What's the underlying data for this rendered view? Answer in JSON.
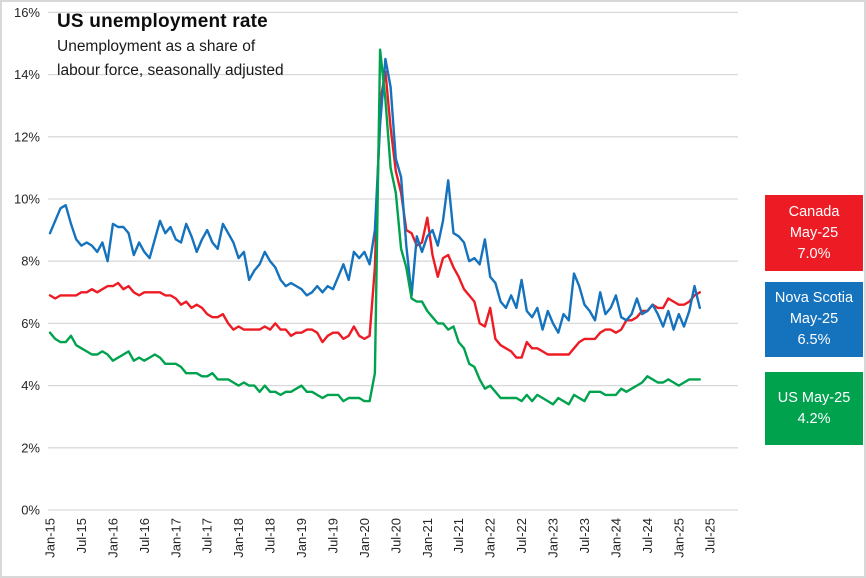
{
  "header": {
    "title": "US unemployment rate",
    "subtitle_line1": "Unemployment as a share of",
    "subtitle_line2": "labour force, seasonally adjusted"
  },
  "legend": {
    "canada": {
      "region": "Canada",
      "period": "May-25",
      "value": "7.0%",
      "color": "#ed1b24",
      "lines": [
        "Canada",
        "May-25",
        "7.0%"
      ]
    },
    "nova_scotia": {
      "region": "Nova Scotia",
      "period": "May-25",
      "value": "6.5%",
      "color": "#1572bd",
      "lines": [
        "Nova Scotia",
        "May-25",
        "6.5%"
      ]
    },
    "us": {
      "region": "US",
      "period": "May-25",
      "value": "4.2%",
      "color": "#00a24e",
      "lines": [
        "US May-25",
        "4.2%"
      ]
    }
  },
  "chart_data": {
    "type": "line",
    "title": "US unemployment rate",
    "subtitle": "Unemployment as a share of labour force, seasonally adjusted",
    "x_range": {
      "start": "Jan-2015",
      "end": "May-2025",
      "frequency": "monthly",
      "points": 125
    },
    "x_tick_labels": [
      "Jan-15",
      "Jul-15",
      "Jan-16",
      "Jul-16",
      "Jan-17",
      "Jul-17",
      "Jan-18",
      "Jul-18",
      "Jan-19",
      "Jul-19",
      "Jan-20",
      "Jul-20",
      "Jan-21",
      "Jul-21",
      "Jan-22",
      "Jul-22",
      "Jan-23",
      "Jul-23",
      "Jan-24",
      "Jul-24",
      "Jan-25",
      "Jul-25"
    ],
    "x_tick_interval_months": 6,
    "ylim": [
      0,
      16
    ],
    "y_tick_step": 2,
    "y_tick_suffix": "%",
    "grid": "horizontal",
    "grid_color": "#d9d9d9",
    "axis_text_color": "#262626",
    "legend_position": "right",
    "series": [
      {
        "name": "Canada",
        "color": "#ed1b24",
        "latest_period": "May-25",
        "latest_value": 7.0,
        "values": [
          6.9,
          6.8,
          6.9,
          6.9,
          6.9,
          6.9,
          7.0,
          7.0,
          7.1,
          7.0,
          7.1,
          7.2,
          7.2,
          7.3,
          7.1,
          7.2,
          7.0,
          6.9,
          7.0,
          7.0,
          7.0,
          7.0,
          6.9,
          6.9,
          6.8,
          6.6,
          6.7,
          6.5,
          6.6,
          6.5,
          6.3,
          6.2,
          6.2,
          6.3,
          6.0,
          5.8,
          5.9,
          5.8,
          5.8,
          5.8,
          5.8,
          5.9,
          5.8,
          6.0,
          5.8,
          5.8,
          5.6,
          5.7,
          5.7,
          5.8,
          5.8,
          5.7,
          5.4,
          5.6,
          5.7,
          5.7,
          5.5,
          5.6,
          5.9,
          5.6,
          5.5,
          5.6,
          7.8,
          13.1,
          14.1,
          12.3,
          10.9,
          10.2,
          9.0,
          8.9,
          8.5,
          8.6,
          9.4,
          8.2,
          7.5,
          8.1,
          8.2,
          7.8,
          7.5,
          7.1,
          6.9,
          6.7,
          6.0,
          5.9,
          6.5,
          5.5,
          5.3,
          5.2,
          5.1,
          4.9,
          4.9,
          5.4,
          5.2,
          5.2,
          5.1,
          5.0,
          5.0,
          5.0,
          5.0,
          5.0,
          5.2,
          5.4,
          5.5,
          5.5,
          5.5,
          5.7,
          5.8,
          5.8,
          5.7,
          5.8,
          6.1,
          6.1,
          6.2,
          6.4,
          6.4,
          6.6,
          6.5,
          6.5,
          6.8,
          6.7,
          6.6,
          6.6,
          6.7,
          6.9,
          7.0
        ]
      },
      {
        "name": "Nova Scotia",
        "color": "#1572bd",
        "latest_period": "May-25",
        "latest_value": 6.5,
        "values": [
          8.9,
          9.3,
          9.7,
          9.8,
          9.2,
          8.7,
          8.5,
          8.6,
          8.5,
          8.3,
          8.6,
          8.0,
          9.2,
          9.1,
          9.1,
          8.9,
          8.2,
          8.6,
          8.3,
          8.1,
          8.7,
          9.3,
          8.9,
          9.1,
          8.7,
          8.6,
          9.2,
          8.8,
          8.3,
          8.7,
          9.0,
          8.6,
          8.4,
          9.2,
          8.9,
          8.6,
          8.1,
          8.3,
          7.4,
          7.7,
          7.9,
          8.3,
          8.0,
          7.8,
          7.4,
          7.2,
          7.3,
          7.2,
          7.1,
          6.9,
          7.0,
          7.2,
          7.0,
          7.2,
          7.1,
          7.5,
          7.9,
          7.4,
          8.3,
          8.1,
          8.3,
          7.9,
          9.0,
          12.4,
          14.5,
          13.6,
          11.3,
          10.7,
          8.5,
          6.9,
          8.8,
          8.3,
          8.8,
          9.0,
          8.5,
          9.3,
          10.6,
          8.9,
          8.8,
          8.6,
          8.0,
          8.1,
          7.9,
          8.7,
          7.5,
          7.3,
          6.7,
          6.5,
          6.9,
          6.5,
          7.4,
          6.4,
          6.2,
          6.5,
          5.8,
          6.4,
          6.0,
          5.7,
          6.3,
          6.1,
          7.6,
          7.2,
          6.6,
          6.4,
          6.1,
          7.0,
          6.3,
          6.5,
          6.9,
          6.2,
          6.1,
          6.3,
          6.8,
          6.3,
          6.4,
          6.6,
          6.3,
          5.9,
          6.4,
          5.8,
          6.3,
          5.9,
          6.4,
          7.2,
          6.5
        ]
      },
      {
        "name": "US",
        "color": "#00a24e",
        "latest_period": "May-25",
        "latest_value": 4.2,
        "values": [
          5.7,
          5.5,
          5.4,
          5.4,
          5.6,
          5.3,
          5.2,
          5.1,
          5.0,
          5.0,
          5.1,
          5.0,
          4.8,
          4.9,
          5.0,
          5.1,
          4.8,
          4.9,
          4.8,
          4.9,
          5.0,
          4.9,
          4.7,
          4.7,
          4.7,
          4.6,
          4.4,
          4.4,
          4.4,
          4.3,
          4.3,
          4.4,
          4.2,
          4.2,
          4.2,
          4.1,
          4.0,
          4.1,
          4.0,
          4.0,
          3.8,
          4.0,
          3.8,
          3.8,
          3.7,
          3.8,
          3.8,
          3.9,
          4.0,
          3.8,
          3.8,
          3.7,
          3.6,
          3.7,
          3.7,
          3.7,
          3.5,
          3.6,
          3.6,
          3.6,
          3.5,
          3.5,
          4.4,
          14.8,
          13.2,
          11.0,
          10.2,
          8.4,
          7.8,
          6.8,
          6.7,
          6.7,
          6.4,
          6.2,
          6.0,
          6.0,
          5.8,
          5.9,
          5.4,
          5.2,
          4.7,
          4.6,
          4.2,
          3.9,
          4.0,
          3.8,
          3.6,
          3.6,
          3.6,
          3.6,
          3.5,
          3.7,
          3.5,
          3.7,
          3.6,
          3.5,
          3.4,
          3.6,
          3.5,
          3.4,
          3.7,
          3.6,
          3.5,
          3.8,
          3.8,
          3.8,
          3.7,
          3.7,
          3.7,
          3.9,
          3.8,
          3.9,
          4.0,
          4.1,
          4.3,
          4.2,
          4.1,
          4.1,
          4.2,
          4.1,
          4.0,
          4.1,
          4.2,
          4.2,
          4.2
        ]
      }
    ]
  }
}
